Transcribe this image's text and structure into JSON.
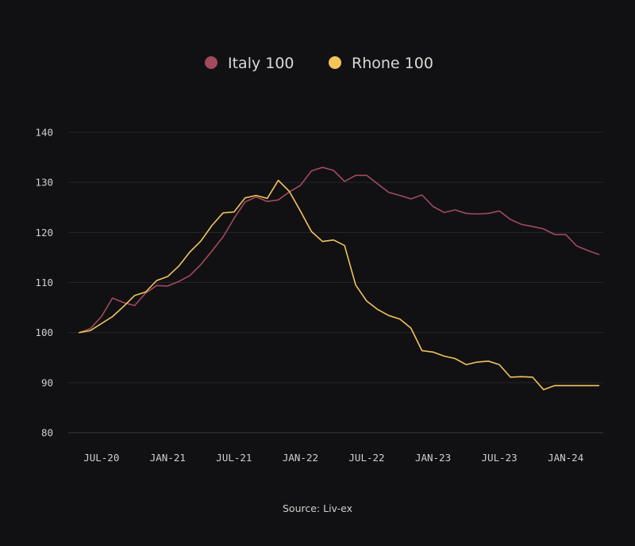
{
  "chart_data": {
    "type": "line",
    "title": "",
    "xlabel": "",
    "ylabel": "",
    "x_ticks": [
      "JUL-20",
      "JAN-21",
      "JUL-21",
      "JAN-22",
      "JUL-22",
      "JAN-23",
      "JUL-23",
      "JAN-24"
    ],
    "y_ticks": [
      140,
      130,
      120,
      110,
      100,
      90,
      80
    ],
    "ylim": [
      80,
      140
    ],
    "xlim": [
      "2020-05",
      "2024-04"
    ],
    "grid": true,
    "legend_position": "top-center",
    "series": [
      {
        "name": "Italy 100",
        "color": "#a14a5e",
        "x": [
          "2020-05",
          "2020-06",
          "2020-07",
          "2020-08",
          "2020-09",
          "2020-10",
          "2020-11",
          "2020-12",
          "2021-01",
          "2021-02",
          "2021-03",
          "2021-04",
          "2021-05",
          "2021-06",
          "2021-07",
          "2021-08",
          "2021-09",
          "2021-10",
          "2021-11",
          "2021-12",
          "2022-01",
          "2022-02",
          "2022-03",
          "2022-04",
          "2022-05",
          "2022-06",
          "2022-07",
          "2022-08",
          "2022-09",
          "2022-10",
          "2022-11",
          "2022-12",
          "2023-01",
          "2023-02",
          "2023-03",
          "2023-04",
          "2023-05",
          "2023-06",
          "2023-07",
          "2023-08",
          "2023-09",
          "2023-10",
          "2023-11",
          "2023-12",
          "2024-01",
          "2024-02",
          "2024-03",
          "2024-04"
        ],
        "values": [
          100,
          100.8,
          103.2,
          106.9,
          106,
          105.4,
          107.9,
          109.4,
          109.3,
          110.2,
          111.4,
          113.6,
          116.3,
          119.1,
          122.8,
          126.1,
          127.1,
          126.2,
          126.5,
          128.1,
          129.4,
          132.3,
          133,
          132.4,
          130.2,
          131.4,
          131.4,
          129.7,
          128,
          127.4,
          126.7,
          127.5,
          125.2,
          124,
          124.5,
          123.8,
          123.7,
          123.8,
          124.3,
          122.6,
          121.6,
          121.2,
          120.7,
          119.6,
          119.6,
          117.3,
          116.4,
          115.6
        ]
      },
      {
        "name": "Rhone 100",
        "color": "#f2c45a",
        "x": [
          "2020-05",
          "2020-06",
          "2020-07",
          "2020-08",
          "2020-09",
          "2020-10",
          "2020-11",
          "2020-12",
          "2021-01",
          "2021-02",
          "2021-03",
          "2021-04",
          "2021-05",
          "2021-06",
          "2021-07",
          "2021-08",
          "2021-09",
          "2021-10",
          "2021-11",
          "2021-12",
          "2022-01",
          "2022-02",
          "2022-03",
          "2022-04",
          "2022-05",
          "2022-06",
          "2022-07",
          "2022-08",
          "2022-09",
          "2022-10",
          "2022-11",
          "2022-12",
          "2023-01",
          "2023-02",
          "2023-03",
          "2023-04",
          "2023-05",
          "2023-06",
          "2023-07",
          "2023-08",
          "2023-09",
          "2023-10",
          "2023-11",
          "2023-12",
          "2024-01",
          "2024-02",
          "2024-03",
          "2024-04"
        ],
        "values": [
          100,
          100.4,
          101.8,
          103.2,
          105.2,
          107.4,
          108.1,
          110.4,
          111.2,
          113.3,
          116.1,
          118.3,
          121.4,
          123.9,
          124.1,
          126.9,
          127.4,
          126.8,
          130.4,
          128.2,
          124.3,
          120.2,
          118.2,
          118.5,
          117.4,
          109.5,
          106.3,
          104.6,
          103.4,
          102.7,
          100.9,
          96.4,
          96.1,
          95.3,
          94.8,
          93.6,
          94.1,
          94.3,
          93.6,
          91.1,
          91.2,
          91.1,
          88.6,
          89.4,
          89.4,
          89.4,
          89.4,
          89.4
        ]
      }
    ]
  },
  "source": "Source: Liv-ex"
}
